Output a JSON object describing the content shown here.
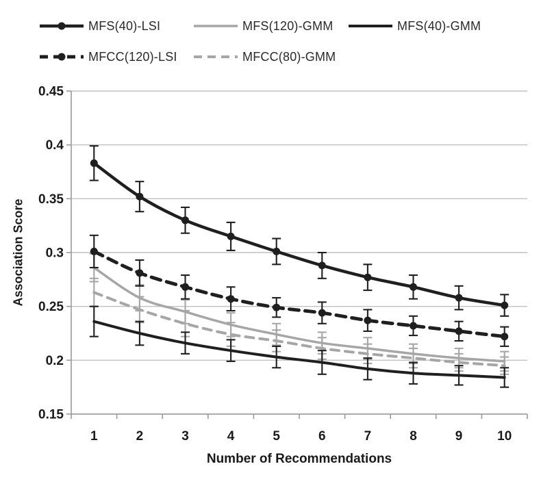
{
  "chart_data": {
    "type": "line",
    "title": "",
    "xlabel": "Number of Recommendations",
    "ylabel": "Association Score",
    "categories": [
      "1",
      "2",
      "3",
      "4",
      "5",
      "6",
      "7",
      "8",
      "9",
      "10"
    ],
    "ylim": [
      0.15,
      0.45
    ],
    "yticks": [
      0.15,
      0.2,
      0.25,
      0.3,
      0.35,
      0.4,
      0.45
    ],
    "ytick_labels": [
      "0.15",
      "0.2",
      "0.25",
      "0.3",
      "0.35",
      "0.4",
      "0.45"
    ],
    "grid": "horizontal",
    "legend_position": "top-left, two rows",
    "error_bars": true,
    "colors": {
      "background": "#ffffff",
      "black_series": "#1f1f1f",
      "gray_series": "#a6a6a6",
      "gridline": "#c0c0c0",
      "axis": "#9a9a9a",
      "text": "#1a1a1a"
    },
    "series": [
      {
        "name": "MFS(40)-LSI",
        "color": "#1f1f1f",
        "style": "solid",
        "line_width": 4.5,
        "marker": "circle",
        "legend_row": 1,
        "values": [
          0.383,
          0.352,
          0.33,
          0.315,
          0.301,
          0.288,
          0.277,
          0.268,
          0.258,
          0.251
        ],
        "errors": [
          0.016,
          0.014,
          0.012,
          0.013,
          0.012,
          0.012,
          0.012,
          0.011,
          0.011,
          0.01
        ]
      },
      {
        "name": "MFS(120)-GMM",
        "color": "#a6a6a6",
        "style": "solid",
        "line_width": 3.5,
        "marker": "none",
        "legend_row": 1,
        "values": [
          0.286,
          0.258,
          0.245,
          0.233,
          0.224,
          0.216,
          0.211,
          0.206,
          0.202,
          0.199
        ],
        "errors": [
          0.013,
          0.012,
          0.011,
          0.011,
          0.01,
          0.01,
          0.01,
          0.009,
          0.009,
          0.009
        ]
      },
      {
        "name": "MFS(40)-GMM",
        "color": "#1f1f1f",
        "style": "solid",
        "line_width": 4,
        "marker": "none",
        "legend_row": 1,
        "values": [
          0.236,
          0.225,
          0.216,
          0.209,
          0.203,
          0.198,
          0.192,
          0.188,
          0.186,
          0.184
        ],
        "errors": [
          0.014,
          0.011,
          0.01,
          0.01,
          0.01,
          0.011,
          0.01,
          0.01,
          0.009,
          0.009
        ]
      },
      {
        "name": "MFCC(120)-LSI",
        "color": "#1f1f1f",
        "style": "dashed",
        "line_width": 5,
        "marker": "circle",
        "legend_row": 2,
        "values": [
          0.301,
          0.281,
          0.268,
          0.257,
          0.249,
          0.244,
          0.237,
          0.232,
          0.227,
          0.222
        ],
        "errors": [
          0.015,
          0.012,
          0.011,
          0.011,
          0.009,
          0.01,
          0.01,
          0.009,
          0.009,
          0.009
        ]
      },
      {
        "name": "MFCC(80)-GMM",
        "color": "#a6a6a6",
        "style": "dashed",
        "line_width": 4,
        "marker": "none",
        "legend_row": 2,
        "values": [
          0.263,
          0.247,
          0.234,
          0.224,
          0.218,
          0.211,
          0.206,
          0.202,
          0.198,
          0.195
        ],
        "errors": [
          0.013,
          0.012,
          0.012,
          0.011,
          0.01,
          0.01,
          0.009,
          0.009,
          0.008,
          0.008
        ]
      }
    ],
    "draw_order": [
      1,
      4,
      2,
      3,
      0
    ]
  }
}
